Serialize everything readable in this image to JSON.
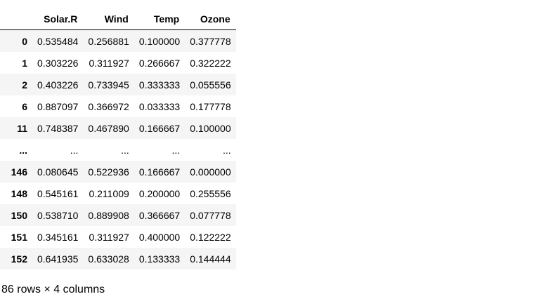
{
  "table": {
    "columns": [
      "Solar.R",
      "Wind",
      "Temp",
      "Ozone"
    ],
    "rows": [
      {
        "index": "0",
        "values": [
          "0.535484",
          "0.256881",
          "0.100000",
          "0.377778"
        ]
      },
      {
        "index": "1",
        "values": [
          "0.303226",
          "0.311927",
          "0.266667",
          "0.322222"
        ]
      },
      {
        "index": "2",
        "values": [
          "0.403226",
          "0.733945",
          "0.333333",
          "0.055556"
        ]
      },
      {
        "index": "6",
        "values": [
          "0.887097",
          "0.366972",
          "0.033333",
          "0.177778"
        ]
      },
      {
        "index": "11",
        "values": [
          "0.748387",
          "0.467890",
          "0.166667",
          "0.100000"
        ]
      },
      {
        "index": "...",
        "values": [
          "...",
          "...",
          "...",
          "..."
        ]
      },
      {
        "index": "146",
        "values": [
          "0.080645",
          "0.522936",
          "0.166667",
          "0.000000"
        ]
      },
      {
        "index": "148",
        "values": [
          "0.545161",
          "0.211009",
          "0.200000",
          "0.255556"
        ]
      },
      {
        "index": "150",
        "values": [
          "0.538710",
          "0.889908",
          "0.366667",
          "0.077778"
        ]
      },
      {
        "index": "151",
        "values": [
          "0.345161",
          "0.311927",
          "0.400000",
          "0.122222"
        ]
      },
      {
        "index": "152",
        "values": [
          "0.641935",
          "0.633028",
          "0.133333",
          "0.144444"
        ]
      }
    ]
  },
  "shape_text": "86 rows × 4 columns"
}
